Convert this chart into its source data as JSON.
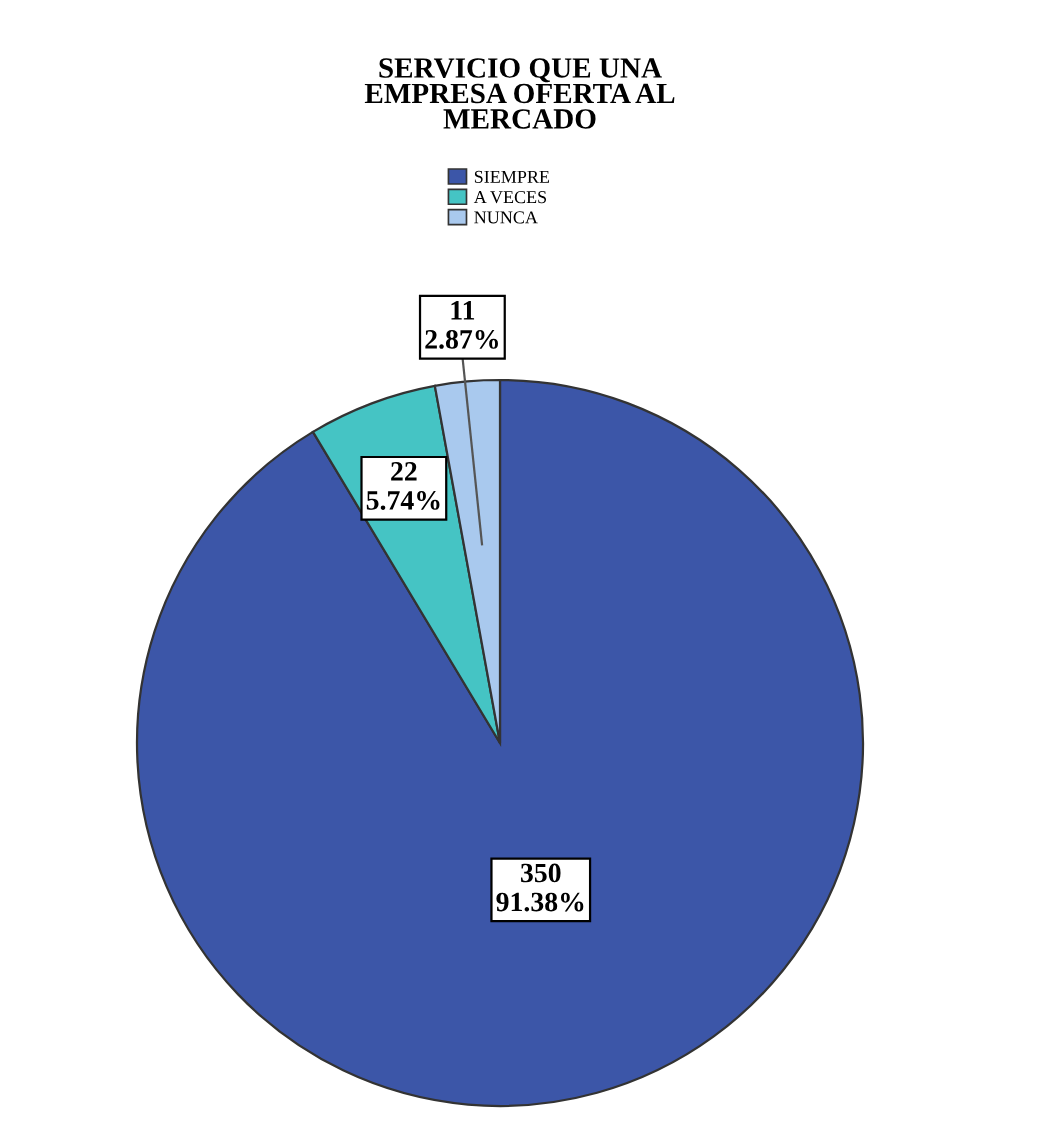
{
  "chart_data": {
    "type": "pie",
    "title": "SERVICIO QUE UNA\nEMPRESA OFERTA AL\nMERCADO",
    "categories": [
      "SIEMPRE",
      "A VECES",
      "NUNCA"
    ],
    "values": [
      350,
      22,
      11
    ],
    "colors": [
      "#3c56a8",
      "#45c4c4",
      "#a9c9ee"
    ],
    "value_labels": [
      "350\n91.38%",
      "22\n5.74%",
      "11\n2.87%"
    ],
    "legend": "top"
  }
}
